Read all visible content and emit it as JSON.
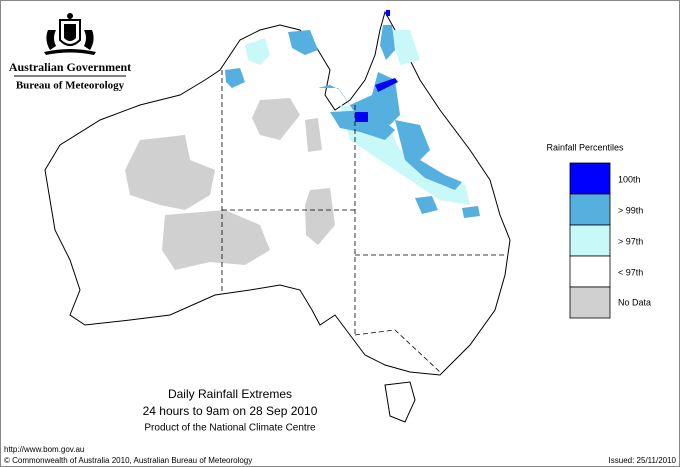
{
  "header": {
    "title": "Australian Government",
    "subtitle": "Bureau of Meteorology"
  },
  "legend": {
    "title": "Rainfall Percentiles",
    "items": [
      {
        "label": "100th",
        "color": "#0000ff"
      },
      {
        "label": "> 99th",
        "color": "#55b0e0"
      },
      {
        "label": "> 97th",
        "color": "#c8f8f8"
      },
      {
        "label": "< 97th",
        "color": "#ffffff"
      },
      {
        "label": "No Data",
        "color": "#d0d0d0"
      }
    ]
  },
  "caption": {
    "title": "Daily Rainfall Extremes",
    "period": "24 hours to 9am on 28 Sep 2010",
    "credit": "Product of the National Climate Centre"
  },
  "footer": {
    "url": "http://www.bom.gov.au",
    "copyright": "© Commonwealth of Australia 2010, Australian Bureau of Meteorology",
    "issued": "Issued: 25/11/2010"
  }
}
